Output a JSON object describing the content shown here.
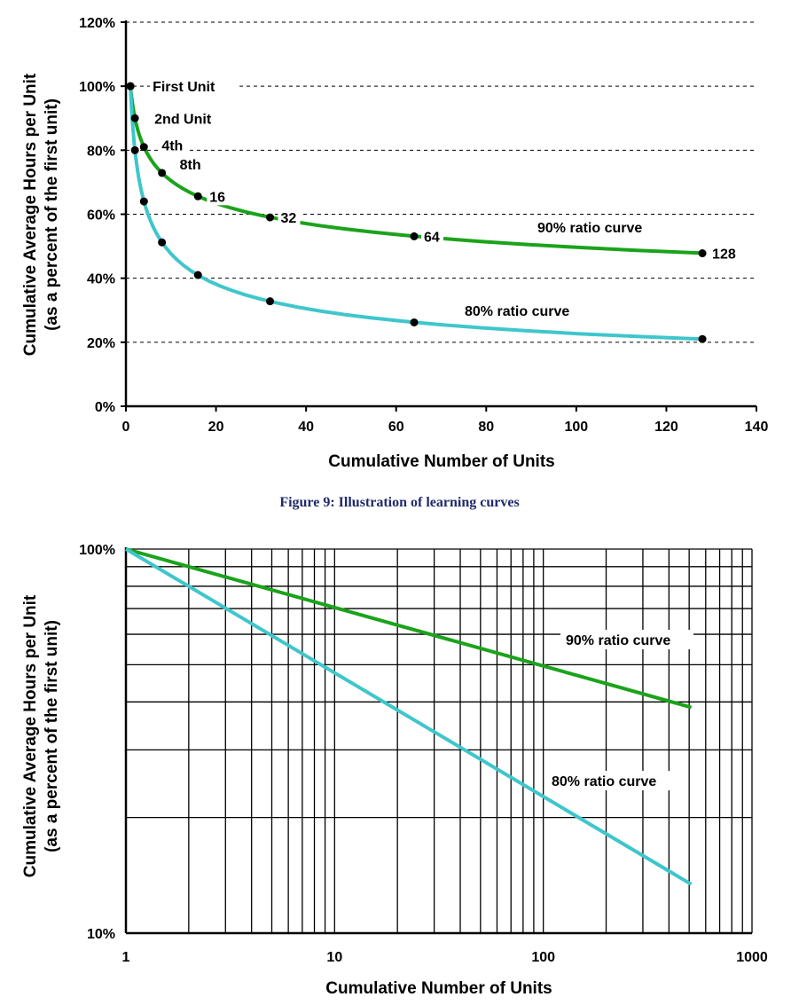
{
  "caption": "Figure 9: Illustration of learning curves",
  "colors": {
    "green": "#1ba31b",
    "cyan": "#3fc6cc",
    "marker": "#000000"
  },
  "chart_data": [
    {
      "type": "line",
      "xlabel": "Cumulative Number of Units",
      "ylabel": "Cumulative Average Hours per Unit",
      "ylabel2": "(as a percent of the first unit)",
      "xlim": [
        0,
        140
      ],
      "ylim": [
        0,
        120
      ],
      "x_ticks": [
        "0",
        "20",
        "40",
        "60",
        "80",
        "100",
        "120",
        "140"
      ],
      "y_ticks": [
        "0%",
        "20%",
        "40%",
        "60%",
        "80%",
        "100%",
        "120%"
      ],
      "grid": "horizontal dashed",
      "series": [
        {
          "name": "90% ratio curve",
          "color": "green",
          "x": [
            1,
            2,
            4,
            8,
            16,
            32,
            64,
            128
          ],
          "y": [
            100,
            90,
            81,
            72.9,
            65.6,
            59,
            53.1,
            47.8
          ]
        },
        {
          "name": "80% ratio curve",
          "color": "cyan",
          "x": [
            1,
            2,
            4,
            8,
            16,
            32,
            64,
            128
          ],
          "y": [
            100,
            80,
            64,
            51.2,
            41,
            32.8,
            26.2,
            21
          ]
        }
      ],
      "annotations": [
        {
          "text": "First Unit",
          "x": 1,
          "y": 100
        },
        {
          "text": "2nd Unit",
          "x": 2,
          "y": 90
        },
        {
          "text": "4th",
          "x": 4,
          "y": 81
        },
        {
          "text": "8th",
          "x": 8,
          "y": 72.9
        },
        {
          "text": "16",
          "x": 16,
          "y": 65.6
        },
        {
          "text": "32",
          "x": 32,
          "y": 59
        },
        {
          "text": "64",
          "x": 64,
          "y": 53.1
        },
        {
          "text": "128",
          "x": 128,
          "y": 47.8
        }
      ]
    },
    {
      "type": "line",
      "scale": "log-log",
      "xlabel": "Cumulative Number of Units",
      "ylabel": "Cumulative Average Hours per Unit",
      "ylabel2": "(as a percent of the first unit)",
      "xlim": [
        1,
        1000
      ],
      "ylim": [
        10,
        100
      ],
      "x_ticks": [
        "1",
        "10",
        "100",
        "1000"
      ],
      "y_ticks": [
        "10%",
        "100%"
      ],
      "grid": "log grid",
      "series": [
        {
          "name": "90% ratio curve",
          "color": "green",
          "x": [
            1,
            512
          ],
          "y": [
            100,
            38.7
          ]
        },
        {
          "name": "80% ratio curve",
          "color": "cyan",
          "x": [
            1,
            512
          ],
          "y": [
            100,
            13.4
          ]
        }
      ]
    }
  ]
}
